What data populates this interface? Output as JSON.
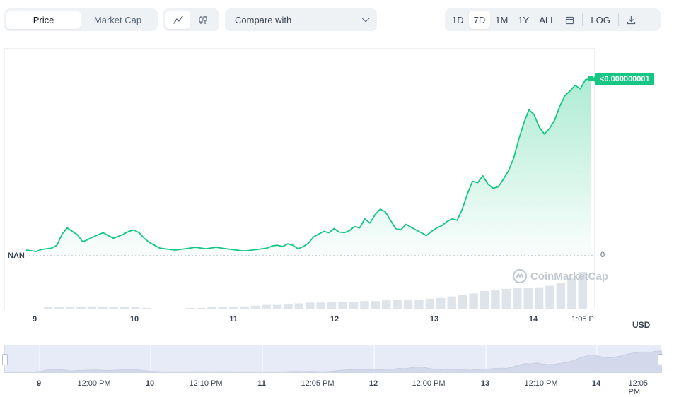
{
  "toolbar": {
    "chart_types": [
      {
        "label": "Price",
        "active": true
      },
      {
        "label": "Market Cap",
        "active": false
      }
    ],
    "style_icons": [
      "line-chart-icon",
      "candlestick-icon"
    ],
    "compare_label": "Compare with",
    "ranges": [
      {
        "label": "1D",
        "active": false
      },
      {
        "label": "7D",
        "active": true
      },
      {
        "label": "1M",
        "active": false
      },
      {
        "label": "1Y",
        "active": false
      },
      {
        "label": "ALL",
        "active": false
      }
    ],
    "calendar_icon": "calendar-icon",
    "log_label": "LOG",
    "download_icon": "download-icon"
  },
  "price_tag": "<0.000000001",
  "y_zero_label": "0",
  "nan_label": "NAN",
  "currency": "USD",
  "watermark": "CoinMarketCap",
  "accent_color": "#16c784",
  "chart_data": {
    "type": "area",
    "x_labels": [
      "9",
      "10",
      "11",
      "12",
      "13",
      "14",
      "1:05 P"
    ],
    "ylabel": "",
    "y_ticks": [
      "0"
    ],
    "series": [
      {
        "values": [
          3,
          2,
          1,
          4,
          5,
          6,
          10,
          26,
          35,
          30,
          25,
          15,
          18,
          22,
          25,
          28,
          24,
          20,
          23,
          26,
          30,
          32,
          28,
          20,
          14,
          10,
          6,
          5,
          4,
          3,
          4,
          5,
          6,
          7,
          6,
          5,
          6,
          7,
          6,
          5,
          4,
          3,
          2,
          2,
          3,
          4,
          5,
          6,
          9,
          10,
          8,
          12,
          10,
          5,
          8,
          13,
          22,
          26,
          30,
          28,
          34,
          29,
          28,
          31,
          37,
          35,
          48,
          42,
          54,
          62,
          58,
          46,
          34,
          32,
          40,
          36,
          32,
          28,
          24,
          30,
          35,
          38,
          44,
          48,
          46,
          62,
          84,
          102,
          100,
          110,
          98,
          92,
          94,
          105,
          117,
          135,
          162,
          186,
          205,
          198,
          180,
          170,
          178,
          190,
          210,
          225,
          232,
          240,
          235,
          248,
          250
        ]
      }
    ],
    "volume": [
      2,
      2,
      3,
      3,
      3,
      3,
      2,
      2,
      2,
      1,
      0,
      0,
      0,
      1,
      1,
      2,
      2,
      3,
      3,
      4,
      5,
      5,
      6,
      7,
      8,
      8,
      9,
      9,
      9,
      10,
      10,
      11,
      11,
      11,
      12,
      13,
      14,
      16,
      18,
      20,
      23,
      25,
      26,
      27,
      27,
      28,
      30,
      34,
      40,
      48
    ]
  },
  "navigator_labels": [
    {
      "text": "9",
      "bold": true
    },
    {
      "text": "12:00 PM",
      "bold": false
    },
    {
      "text": "10",
      "bold": true
    },
    {
      "text": "12:10 PM",
      "bold": false
    },
    {
      "text": "11",
      "bold": true
    },
    {
      "text": "12:05 PM",
      "bold": false
    },
    {
      "text": "12",
      "bold": true
    },
    {
      "text": "12:00 PM",
      "bold": false
    },
    {
      "text": "13",
      "bold": true
    },
    {
      "text": "12:10 PM",
      "bold": false
    },
    {
      "text": "14",
      "bold": true
    },
    {
      "text": "12:05 PM",
      "bold": false
    }
  ]
}
